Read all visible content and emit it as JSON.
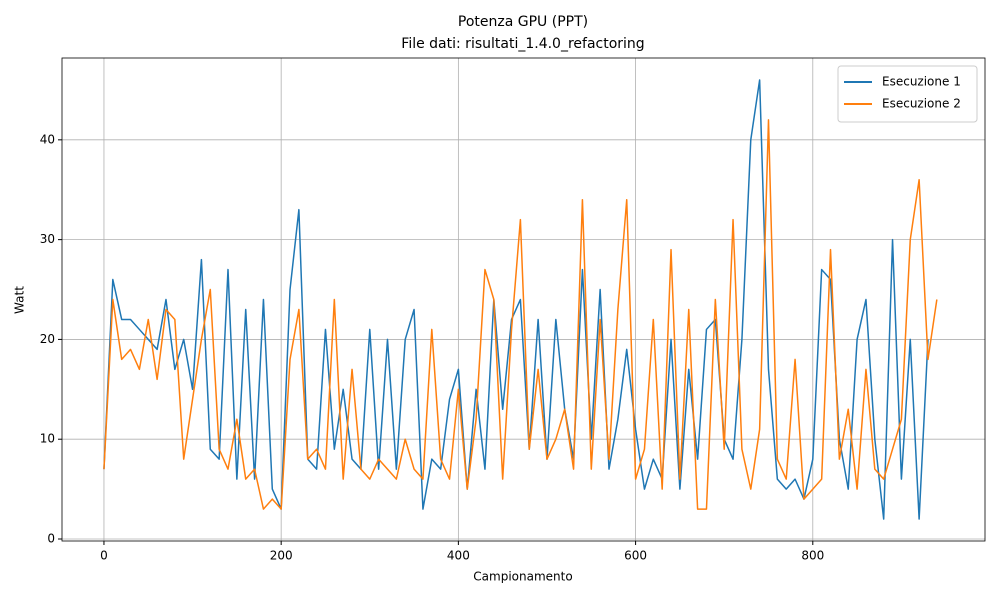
{
  "chart_data": {
    "type": "line",
    "title": "Potenza GPU (PPT)",
    "subtitle": "File dati: risultati_1.4.0_refactoring",
    "x_label": "Campionamento",
    "y_label": "Watt",
    "x": [
      0,
      10,
      20,
      30,
      40,
      50,
      60,
      70,
      80,
      90,
      100,
      110,
      120,
      130,
      140,
      150,
      160,
      170,
      180,
      190,
      200,
      210,
      220,
      230,
      240,
      250,
      260,
      270,
      280,
      290,
      300,
      310,
      320,
      330,
      340,
      350,
      360,
      370,
      380,
      390,
      400,
      410,
      420,
      430,
      440,
      450,
      460,
      470,
      480,
      490,
      500,
      510,
      520,
      530,
      540,
      550,
      560,
      570,
      580,
      590,
      600,
      610,
      620,
      630,
      640,
      650,
      660,
      670,
      680,
      690,
      700,
      710,
      720,
      730,
      740,
      750,
      760,
      770,
      780,
      790,
      800,
      810,
      820,
      830,
      840,
      850,
      860,
      870,
      880,
      890,
      900,
      910,
      920,
      930,
      940
    ],
    "series": [
      {
        "name": "Esecuzione 1",
        "color": "#1f77b4",
        "values": [
          7,
          26,
          22,
          22,
          21,
          20,
          19,
          24,
          17,
          20,
          15,
          28,
          9,
          8,
          27,
          6,
          23,
          6,
          24,
          5,
          3,
          25,
          33,
          8,
          7,
          21,
          9,
          15,
          8,
          7,
          21,
          7,
          20,
          7,
          20,
          23,
          3,
          8,
          7,
          14,
          17,
          5,
          15,
          7,
          24,
          13,
          22,
          24,
          9,
          22,
          8,
          22,
          13,
          8,
          27,
          10,
          25,
          7,
          12,
          19,
          11,
          5,
          8,
          6,
          20,
          5,
          17,
          8,
          21,
          22,
          10,
          8,
          20,
          40,
          46,
          17,
          6,
          5,
          6,
          4,
          8,
          27,
          26,
          10,
          5,
          20,
          24,
          10,
          2,
          30,
          6,
          20,
          2,
          20,
          null
        ]
      },
      {
        "name": "Esecuzione 2",
        "color": "#ff7f0e",
        "values": [
          7,
          24,
          18,
          19,
          17,
          22,
          16,
          23,
          22,
          8,
          14,
          20,
          25,
          9,
          7,
          12,
          6,
          7,
          3,
          4,
          3,
          18,
          23,
          8,
          9,
          7,
          24,
          6,
          17,
          7,
          6,
          8,
          7,
          6,
          10,
          7,
          6,
          21,
          8,
          6,
          15,
          5,
          12,
          27,
          24,
          6,
          21,
          32,
          9,
          17,
          8,
          10,
          13,
          7,
          34,
          7,
          22,
          8,
          23,
          34,
          6,
          9,
          22,
          5,
          29,
          6,
          23,
          3,
          3,
          24,
          9,
          32,
          9,
          5,
          11,
          42,
          8,
          6,
          18,
          4,
          5,
          6,
          29,
          8,
          13,
          5,
          17,
          7,
          6,
          9,
          12,
          30,
          36,
          18,
          24
        ]
      }
    ],
    "xlim": [
      -47.35,
      994.35
    ],
    "ylim": [
      -0.2,
      48.2
    ],
    "xticks": [
      0,
      200,
      400,
      600,
      800
    ],
    "yticks": [
      0,
      10,
      20,
      30,
      40
    ],
    "grid": true,
    "legend": "upper right"
  }
}
